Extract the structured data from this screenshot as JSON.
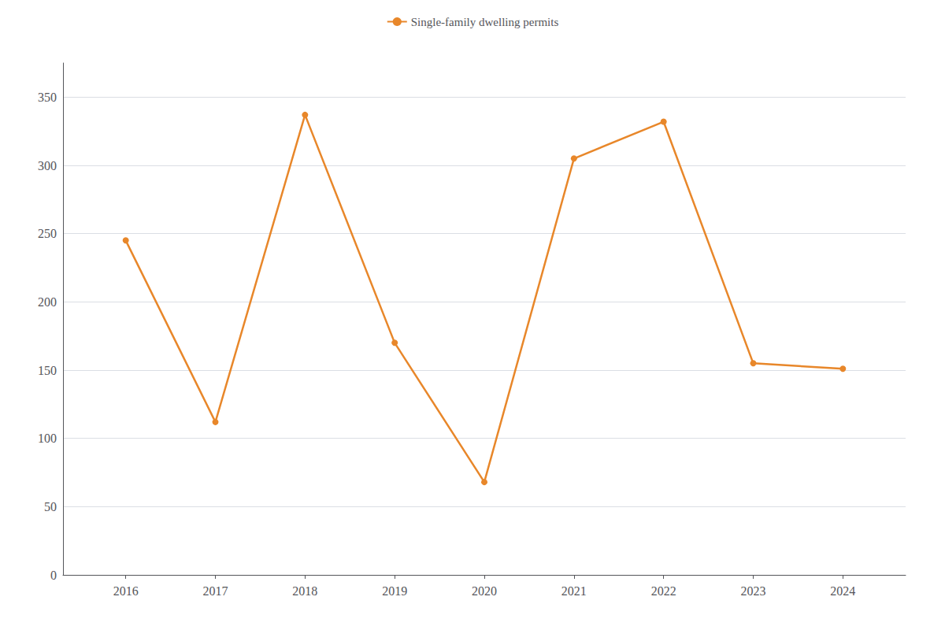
{
  "chart_data": {
    "type": "line",
    "x": [
      2016,
      2017,
      2018,
      2019,
      2020,
      2021,
      2022,
      2023,
      2024
    ],
    "xlim": [
      2015.3,
      2024.7
    ],
    "xticks": [
      2016,
      2017,
      2018,
      2019,
      2020,
      2021,
      2022,
      2023,
      2024
    ],
    "ylim": [
      0,
      375
    ],
    "yticks": [
      0,
      50,
      100,
      150,
      200,
      250,
      300,
      350
    ],
    "series": [
      {
        "name": "Single-family dwelling permits",
        "color": "#E8872A",
        "values": [
          245,
          112,
          337,
          170,
          68,
          305,
          332,
          155,
          151
        ]
      }
    ],
    "marker": "circle",
    "legend": "top",
    "grid": true
  }
}
